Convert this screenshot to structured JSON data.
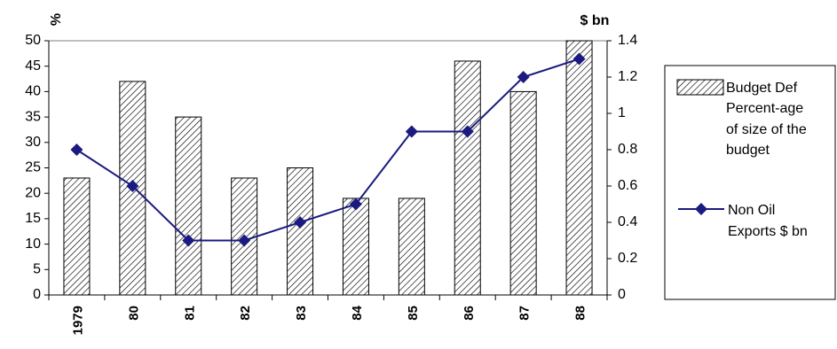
{
  "chart_data": {
    "type": "bar",
    "categories": [
      "1979",
      "80",
      "81",
      "82",
      "83",
      "84",
      "85",
      "86",
      "87",
      "88"
    ],
    "series": [
      {
        "name": "Budget Def Percent-age of size of the budget",
        "type": "bar",
        "axis": "left",
        "values": [
          23,
          42,
          35,
          23,
          25,
          19,
          19,
          46,
          40,
          50
        ]
      },
      {
        "name": "Non Oil Exports $ bn",
        "type": "line",
        "axis": "right",
        "values": [
          0.8,
          0.6,
          0.3,
          0.3,
          0.4,
          0.5,
          0.9,
          0.9,
          1.2,
          1.3
        ]
      }
    ],
    "left_axis": {
      "unit_label": "%",
      "ylim": [
        0,
        50
      ],
      "ticks": [
        "0",
        "5",
        "10",
        "15",
        "20",
        "25",
        "30",
        "35",
        "40",
        "45",
        "50"
      ]
    },
    "right_axis": {
      "unit_label": "$ bn",
      "ylim": [
        0,
        1.4
      ],
      "ticks": [
        "0",
        "0.2",
        "0.4",
        "0.6",
        "0.8",
        "1",
        "1.2",
        "1.4"
      ]
    },
    "legend": {
      "placement": "right",
      "entries": [
        {
          "lines": [
            "Budget Def",
            "Percent-age",
            "of size of the",
            "budget"
          ]
        },
        {
          "lines": [
            "Non Oil",
            "Exports $ bn"
          ]
        }
      ]
    },
    "colors": {
      "line": "#1a1a80",
      "bar_outline": "#000000",
      "bar_hatch": "#000000"
    },
    "title": "",
    "xlabel": "",
    "grid": false
  }
}
